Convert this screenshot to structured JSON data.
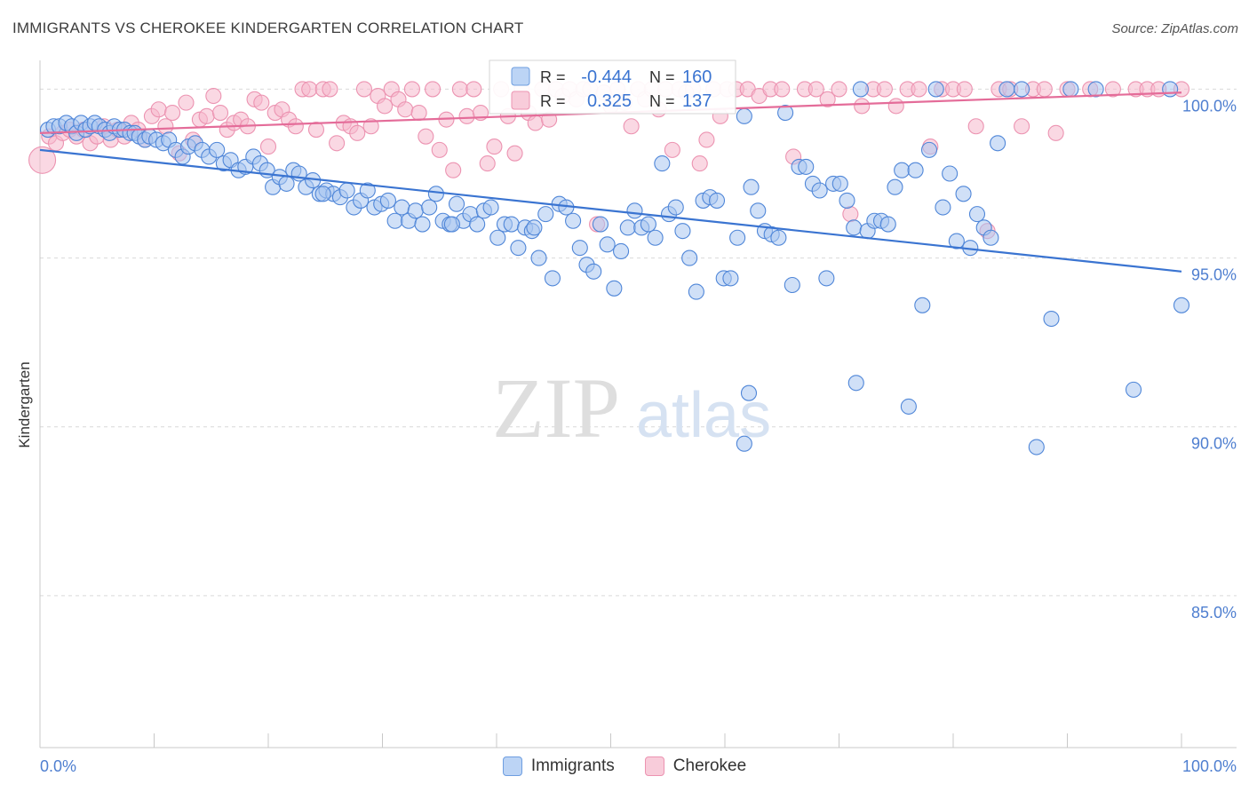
{
  "title": "IMMIGRANTS VS CHEROKEE KINDERGARTEN CORRELATION CHART",
  "source": "Source: ZipAtlas.com",
  "watermark": {
    "zip": "ZIP",
    "atlas": "atlas"
  },
  "colors": {
    "blue": "#3a74d1",
    "blue_fill": "#a9c6f0",
    "blue_stroke": "#4f86d8",
    "pink": "#e46c99",
    "pink_fill": "#f5b8cc",
    "pink_stroke": "#ec93b1",
    "tick_label": "#4f7fd0",
    "grid": "#d9d9d9"
  },
  "chart_data": {
    "type": "scatter",
    "title": "IMMIGRANTS VS CHEROKEE KINDERGARTEN CORRELATION CHART",
    "xlabel": "",
    "ylabel": "Kindergarten",
    "xlim": [
      0,
      100
    ],
    "ylim": [
      80.5,
      100.8
    ],
    "x_tick_labels": [
      "0.0%",
      "100.0%"
    ],
    "y_ticks": [
      85,
      90,
      95,
      100
    ],
    "y_tick_labels": [
      "85.0%",
      "90.0%",
      "95.0%",
      "100.0%"
    ],
    "grid": true,
    "legend_position": "top-center",
    "legend": [
      {
        "series": "Immigrants",
        "r_label": "R =",
        "r_value": "-0.444",
        "n_label": "N =",
        "n_value": "160"
      },
      {
        "series": "Cherokee",
        "r_label": "R =",
        "r_value": "0.325",
        "n_label": "N =",
        "n_value": "137"
      }
    ],
    "series": [
      {
        "name": "Immigrants",
        "color": "#a9c6f0",
        "trend": {
          "x": [
            0,
            100
          ],
          "y": [
            98.2,
            94.6
          ]
        },
        "points": [
          [
            0.7,
            98.8
          ],
          [
            1.2,
            98.9
          ],
          [
            1.7,
            98.9
          ],
          [
            2.3,
            99.0
          ],
          [
            2.8,
            98.9
          ],
          [
            3.2,
            98.7
          ],
          [
            3.6,
            99.0
          ],
          [
            4.0,
            98.8
          ],
          [
            4.4,
            98.9
          ],
          [
            4.8,
            99.0
          ],
          [
            5.2,
            98.9
          ],
          [
            5.7,
            98.8
          ],
          [
            6.1,
            98.7
          ],
          [
            6.5,
            98.9
          ],
          [
            7.0,
            98.8
          ],
          [
            7.4,
            98.8
          ],
          [
            7.9,
            98.7
          ],
          [
            8.3,
            98.7
          ],
          [
            8.7,
            98.6
          ],
          [
            9.2,
            98.5
          ],
          [
            9.6,
            98.6
          ],
          [
            10.2,
            98.5
          ],
          [
            10.8,
            98.4
          ],
          [
            11.3,
            98.5
          ],
          [
            11.9,
            98.2
          ],
          [
            12.5,
            98.0
          ],
          [
            13.0,
            98.3
          ],
          [
            13.6,
            98.4
          ],
          [
            14.2,
            98.2
          ],
          [
            14.8,
            98.0
          ],
          [
            15.5,
            98.2
          ],
          [
            16.1,
            97.8
          ],
          [
            16.7,
            97.9
          ],
          [
            17.4,
            97.6
          ],
          [
            18.0,
            97.7
          ],
          [
            18.7,
            98.0
          ],
          [
            19.3,
            97.8
          ],
          [
            19.9,
            97.6
          ],
          [
            20.4,
            97.1
          ],
          [
            21.0,
            97.4
          ],
          [
            21.6,
            97.2
          ],
          [
            22.2,
            97.6
          ],
          [
            22.7,
            97.5
          ],
          [
            23.3,
            97.1
          ],
          [
            23.9,
            97.3
          ],
          [
            24.5,
            96.9
          ],
          [
            25.1,
            97.0
          ],
          [
            25.7,
            96.9
          ],
          [
            26.3,
            96.8
          ],
          [
            26.9,
            97.0
          ],
          [
            27.5,
            96.5
          ],
          [
            28.1,
            96.7
          ],
          [
            28.7,
            97.0
          ],
          [
            29.3,
            96.5
          ],
          [
            29.9,
            96.6
          ],
          [
            30.5,
            96.7
          ],
          [
            31.1,
            96.1
          ],
          [
            31.7,
            96.5
          ],
          [
            32.3,
            96.1
          ],
          [
            32.9,
            96.4
          ],
          [
            33.5,
            96.0
          ],
          [
            34.1,
            96.5
          ],
          [
            34.7,
            96.9
          ],
          [
            35.3,
            96.1
          ],
          [
            35.9,
            96.0
          ],
          [
            36.5,
            96.6
          ],
          [
            37.1,
            96.1
          ],
          [
            37.7,
            96.3
          ],
          [
            38.3,
            96.0
          ],
          [
            38.9,
            96.4
          ],
          [
            39.5,
            96.5
          ],
          [
            40.1,
            95.6
          ],
          [
            40.7,
            96.0
          ],
          [
            41.3,
            96.0
          ],
          [
            41.9,
            95.3
          ],
          [
            42.5,
            95.9
          ],
          [
            43.1,
            95.8
          ],
          [
            43.7,
            95.0
          ],
          [
            44.3,
            96.3
          ],
          [
            44.9,
            94.4
          ],
          [
            45.5,
            96.6
          ],
          [
            46.1,
            96.5
          ],
          [
            46.7,
            96.1
          ],
          [
            47.3,
            95.3
          ],
          [
            47.9,
            94.8
          ],
          [
            48.5,
            94.6
          ],
          [
            49.1,
            96.0
          ],
          [
            49.7,
            95.4
          ],
          [
            50.3,
            94.1
          ],
          [
            50.9,
            95.2
          ],
          [
            51.5,
            95.9
          ],
          [
            52.1,
            96.4
          ],
          [
            52.7,
            95.9
          ],
          [
            53.3,
            96.0
          ],
          [
            53.9,
            95.6
          ],
          [
            54.5,
            97.8
          ],
          [
            55.1,
            96.3
          ],
          [
            55.7,
            96.5
          ],
          [
            56.3,
            95.8
          ],
          [
            56.9,
            95.0
          ],
          [
            57.5,
            94.0
          ],
          [
            58.1,
            96.7
          ],
          [
            58.7,
            96.8
          ],
          [
            59.3,
            96.7
          ],
          [
            59.9,
            94.4
          ],
          [
            60.5,
            94.4
          ],
          [
            61.1,
            95.6
          ],
          [
            61.7,
            99.2
          ],
          [
            62.3,
            97.1
          ],
          [
            62.9,
            96.4
          ],
          [
            63.5,
            95.8
          ],
          [
            64.1,
            95.7
          ],
          [
            64.7,
            95.6
          ],
          [
            65.3,
            99.3
          ],
          [
            65.9,
            94.2
          ],
          [
            66.5,
            97.7
          ],
          [
            67.1,
            97.7
          ],
          [
            67.7,
            97.2
          ],
          [
            68.3,
            97.0
          ],
          [
            68.9,
            94.4
          ],
          [
            69.5,
            97.2
          ],
          [
            70.1,
            97.2
          ],
          [
            70.7,
            96.7
          ],
          [
            71.3,
            95.9
          ],
          [
            71.9,
            100.0
          ],
          [
            72.5,
            95.8
          ],
          [
            73.1,
            96.1
          ],
          [
            73.7,
            96.1
          ],
          [
            74.3,
            96.0
          ],
          [
            74.9,
            97.1
          ],
          [
            75.5,
            97.6
          ],
          [
            76.1,
            90.6
          ],
          [
            76.7,
            97.6
          ],
          [
            77.3,
            93.6
          ],
          [
            77.9,
            98.2
          ],
          [
            78.5,
            100.0
          ],
          [
            79.1,
            96.5
          ],
          [
            79.7,
            97.5
          ],
          [
            80.3,
            95.5
          ],
          [
            80.9,
            96.9
          ],
          [
            81.5,
            95.3
          ],
          [
            82.1,
            96.3
          ],
          [
            82.7,
            95.9
          ],
          [
            83.3,
            95.6
          ],
          [
            83.9,
            98.4
          ],
          [
            84.7,
            100.0
          ],
          [
            86.0,
            100.0
          ],
          [
            87.3,
            89.4
          ],
          [
            88.6,
            93.2
          ],
          [
            90.3,
            100.0
          ],
          [
            92.5,
            100.0
          ],
          [
            95.8,
            91.1
          ],
          [
            99.0,
            100.0
          ],
          [
            100.0,
            93.6
          ],
          [
            61.7,
            89.5
          ],
          [
            62.1,
            91.0
          ],
          [
            71.5,
            91.3
          ],
          [
            24.8,
            96.9
          ],
          [
            36.1,
            96.0
          ],
          [
            43.3,
            95.9
          ]
        ]
      },
      {
        "name": "Cherokee",
        "color": "#f5b8cc",
        "trend": {
          "x": [
            0,
            100
          ],
          "y": [
            98.7,
            99.9
          ]
        },
        "points": [
          [
            0.2,
            97.9
          ],
          [
            0.8,
            98.6
          ],
          [
            1.4,
            98.4
          ],
          [
            2.0,
            98.7
          ],
          [
            2.6,
            98.8
          ],
          [
            3.2,
            98.6
          ],
          [
            3.8,
            98.8
          ],
          [
            4.4,
            98.4
          ],
          [
            5.0,
            98.6
          ],
          [
            5.6,
            98.9
          ],
          [
            6.2,
            98.5
          ],
          [
            6.8,
            98.8
          ],
          [
            7.4,
            98.6
          ],
          [
            8.0,
            99.0
          ],
          [
            8.6,
            98.8
          ],
          [
            9.2,
            98.5
          ],
          [
            9.8,
            99.2
          ],
          [
            10.4,
            99.4
          ],
          [
            11.0,
            98.9
          ],
          [
            11.6,
            99.3
          ],
          [
            12.2,
            98.1
          ],
          [
            12.8,
            99.6
          ],
          [
            13.4,
            98.5
          ],
          [
            14.0,
            99.1
          ],
          [
            14.6,
            99.2
          ],
          [
            15.2,
            99.8
          ],
          [
            15.8,
            99.3
          ],
          [
            16.4,
            98.8
          ],
          [
            17.0,
            99.0
          ],
          [
            17.6,
            99.1
          ],
          [
            18.2,
            98.9
          ],
          [
            18.8,
            99.7
          ],
          [
            19.4,
            99.6
          ],
          [
            20.0,
            98.3
          ],
          [
            20.6,
            99.3
          ],
          [
            21.2,
            99.4
          ],
          [
            21.8,
            99.1
          ],
          [
            22.4,
            98.9
          ],
          [
            23.0,
            100.0
          ],
          [
            23.6,
            100.0
          ],
          [
            24.2,
            98.8
          ],
          [
            24.8,
            100.0
          ],
          [
            25.4,
            100.0
          ],
          [
            26.0,
            98.4
          ],
          [
            26.6,
            99.0
          ],
          [
            27.2,
            98.9
          ],
          [
            27.8,
            98.7
          ],
          [
            28.4,
            100.0
          ],
          [
            29.0,
            98.9
          ],
          [
            29.6,
            99.8
          ],
          [
            30.2,
            99.5
          ],
          [
            30.8,
            100.0
          ],
          [
            31.4,
            99.7
          ],
          [
            32.0,
            99.4
          ],
          [
            32.6,
            100.0
          ],
          [
            33.2,
            99.3
          ],
          [
            33.8,
            98.6
          ],
          [
            34.4,
            100.0
          ],
          [
            35.0,
            98.2
          ],
          [
            35.6,
            99.1
          ],
          [
            36.2,
            97.6
          ],
          [
            36.8,
            100.0
          ],
          [
            37.4,
            99.2
          ],
          [
            38.0,
            100.0
          ],
          [
            38.6,
            99.3
          ],
          [
            39.2,
            97.8
          ],
          [
            39.8,
            98.3
          ],
          [
            40.4,
            100.0
          ],
          [
            41.0,
            99.2
          ],
          [
            41.6,
            98.1
          ],
          [
            42.2,
            100.0
          ],
          [
            42.8,
            99.3
          ],
          [
            43.4,
            99.0
          ],
          [
            44.0,
            100.0
          ],
          [
            44.6,
            99.1
          ],
          [
            45.2,
            100.0
          ],
          [
            45.8,
            99.8
          ],
          [
            46.4,
            100.0
          ],
          [
            47.0,
            99.7
          ],
          [
            47.6,
            100.0
          ],
          [
            48.2,
            100.0
          ],
          [
            48.8,
            96.0
          ],
          [
            49.4,
            99.9
          ],
          [
            50.0,
            99.5
          ],
          [
            50.6,
            100.0
          ],
          [
            51.2,
            99.6
          ],
          [
            51.8,
            98.9
          ],
          [
            52.4,
            100.0
          ],
          [
            53.0,
            99.7
          ],
          [
            53.6,
            100.0
          ],
          [
            54.2,
            99.4
          ],
          [
            54.8,
            100.0
          ],
          [
            55.4,
            98.2
          ],
          [
            56.0,
            100.0
          ],
          [
            56.6,
            99.9
          ],
          [
            57.2,
            100.0
          ],
          [
            57.8,
            97.8
          ],
          [
            58.4,
            98.5
          ],
          [
            59.0,
            100.0
          ],
          [
            59.6,
            99.2
          ],
          [
            60.2,
            100.0
          ],
          [
            61.0,
            100.0
          ],
          [
            62.0,
            100.0
          ],
          [
            63.0,
            99.8
          ],
          [
            64.0,
            100.0
          ],
          [
            65.0,
            100.0
          ],
          [
            66.0,
            98.0
          ],
          [
            67.0,
            100.0
          ],
          [
            68.0,
            100.0
          ],
          [
            69.0,
            99.7
          ],
          [
            70.0,
            100.0
          ],
          [
            71.0,
            96.3
          ],
          [
            72.0,
            99.5
          ],
          [
            73.0,
            100.0
          ],
          [
            74.0,
            100.0
          ],
          [
            75.0,
            99.5
          ],
          [
            76.0,
            100.0
          ],
          [
            77.0,
            100.0
          ],
          [
            78.0,
            98.3
          ],
          [
            79.0,
            100.0
          ],
          [
            80.0,
            100.0
          ],
          [
            81.0,
            100.0
          ],
          [
            82.0,
            98.9
          ],
          [
            83.0,
            95.8
          ],
          [
            84.0,
            100.0
          ],
          [
            85.0,
            100.0
          ],
          [
            86.0,
            98.9
          ],
          [
            87.0,
            100.0
          ],
          [
            88.0,
            100.0
          ],
          [
            89.0,
            98.7
          ],
          [
            90.0,
            100.0
          ],
          [
            92.0,
            100.0
          ],
          [
            94.0,
            100.0
          ],
          [
            96.0,
            100.0
          ],
          [
            97.0,
            100.0
          ],
          [
            98.0,
            100.0
          ],
          [
            100.0,
            100.0
          ]
        ]
      }
    ]
  },
  "legend_bottom": [
    {
      "label": "Immigrants"
    },
    {
      "label": "Cherokee"
    }
  ]
}
